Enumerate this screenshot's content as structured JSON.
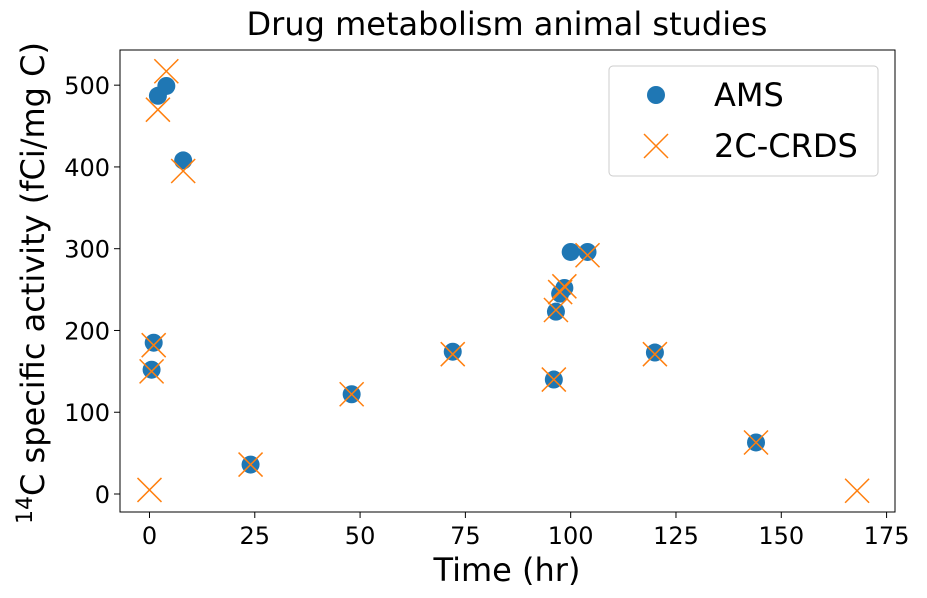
{
  "chart_data": {
    "type": "scatter",
    "title": "Drug metabolism animal studies",
    "xlabel": "Time (hr)",
    "ylabel": {
      "sup": "14",
      "text": "C specific activity (fCi/mg C)"
    },
    "xlim": [
      -7,
      177
    ],
    "ylim": [
      -22,
      543
    ],
    "xticks": [
      "0",
      "25",
      "50",
      "75",
      "100",
      "125",
      "150",
      "175"
    ],
    "yticks": [
      "0",
      "100",
      "200",
      "300",
      "400",
      "500"
    ],
    "grid": false,
    "legend_position": "top-right",
    "series": [
      {
        "name": "AMS",
        "marker": "circle",
        "color": "#1f77b4",
        "points": [
          [
            0.5,
            152
          ],
          [
            1,
            185
          ],
          [
            2,
            487
          ],
          [
            4,
            499
          ],
          [
            8,
            408
          ],
          [
            24,
            36
          ],
          [
            48,
            122
          ],
          [
            72,
            174
          ],
          [
            96,
            140
          ],
          [
            96.5,
            223
          ],
          [
            97.5,
            245
          ],
          [
            98.5,
            252
          ],
          [
            100,
            296
          ],
          [
            104,
            296
          ],
          [
            120,
            173
          ],
          [
            144,
            63
          ]
        ]
      },
      {
        "name": "2C-CRDS",
        "marker": "x",
        "color": "#ff7f0e",
        "points": [
          [
            0,
            5
          ],
          [
            0.5,
            150
          ],
          [
            1,
            182
          ],
          [
            2,
            470
          ],
          [
            4,
            517
          ],
          [
            8,
            395
          ],
          [
            24,
            36
          ],
          [
            48,
            122
          ],
          [
            72,
            171
          ],
          [
            96,
            140
          ],
          [
            96.5,
            225
          ],
          [
            97.5,
            247
          ],
          [
            98.5,
            254
          ],
          [
            104,
            292
          ],
          [
            120,
            171
          ],
          [
            144,
            63
          ],
          [
            168,
            4
          ]
        ]
      }
    ]
  }
}
